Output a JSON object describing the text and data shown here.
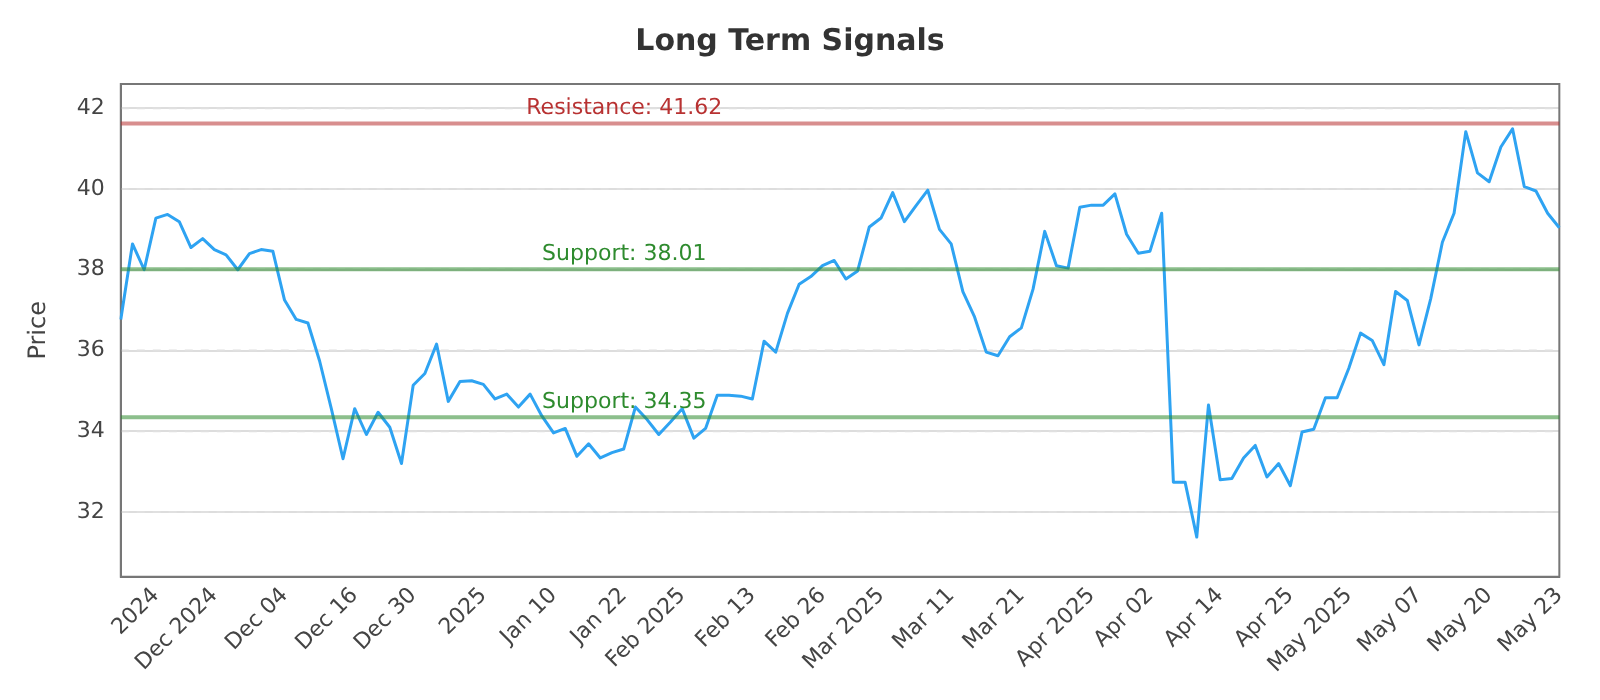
{
  "chart_data": {
    "type": "line",
    "title": "Long Term Signals",
    "ylabel": "Price",
    "categories": [
      null,
      null,
      null,
      "2024",
      null,
      null,
      null,
      null,
      "Dec 2024",
      null,
      null,
      null,
      null,
      null,
      "Dec 04",
      null,
      null,
      null,
      null,
      null,
      "Dec 16",
      null,
      null,
      null,
      null,
      "Dec 30",
      null,
      null,
      null,
      null,
      null,
      "2025",
      null,
      null,
      null,
      null,
      null,
      "Jan 10",
      null,
      null,
      null,
      null,
      null,
      "Jan 22",
      null,
      null,
      null,
      null,
      "Feb 2025",
      null,
      null,
      null,
      null,
      null,
      "Feb 13",
      null,
      null,
      null,
      null,
      null,
      "Feb 26",
      null,
      null,
      null,
      null,
      "Mar 2025",
      null,
      null,
      null,
      null,
      null,
      "Mar 11",
      null,
      null,
      null,
      null,
      null,
      "Mar 21",
      null,
      null,
      null,
      null,
      null,
      "Apr 2025",
      null,
      null,
      null,
      null,
      "Apr 02",
      null,
      null,
      null,
      null,
      null,
      "Apr 14",
      null,
      null,
      null,
      null,
      null,
      "Apr 25",
      null,
      null,
      null,
      null,
      "May 2025",
      null,
      null,
      null,
      null,
      null,
      "May 07",
      null,
      null,
      null,
      null,
      null,
      "May 20",
      null,
      null,
      null,
      null,
      null,
      "May 23"
    ],
    "series": [
      {
        "color": "#2ea3f2",
        "values": [
          36.77,
          38.64,
          38.0,
          39.28,
          39.37,
          39.19,
          38.55,
          38.77,
          38.5,
          38.37,
          38.0,
          38.4,
          38.5,
          38.46,
          37.25,
          36.77,
          36.68,
          35.74,
          34.56,
          33.32,
          34.56,
          33.92,
          34.47,
          34.1,
          33.2,
          35.14,
          35.43,
          36.16,
          34.74,
          35.23,
          35.25,
          35.16,
          34.8,
          34.92,
          34.6,
          34.92,
          34.38,
          33.96,
          34.07,
          33.38,
          33.69,
          33.34,
          33.47,
          33.56,
          34.6,
          34.29,
          33.92,
          34.23,
          34.56,
          33.83,
          34.07,
          34.89,
          34.89,
          34.87,
          34.8,
          36.23,
          35.96,
          36.92,
          37.64,
          37.83,
          38.1,
          38.23,
          37.77,
          37.97,
          39.06,
          39.28,
          39.91,
          39.19,
          39.59,
          39.97,
          39.0,
          38.64,
          37.46,
          36.83,
          35.96,
          35.87,
          36.34,
          36.56,
          37.52,
          38.95,
          38.1,
          38.04,
          39.55,
          39.6,
          39.6,
          39.88,
          38.88,
          38.41,
          38.46,
          39.4,
          32.74,
          32.74,
          31.38,
          34.65,
          32.8,
          32.83,
          33.34,
          33.65,
          32.87,
          33.2,
          32.65,
          33.98,
          34.05,
          34.83,
          34.83,
          35.56,
          36.43,
          36.25,
          35.65,
          37.46,
          37.24,
          36.14,
          37.28,
          38.68,
          39.4,
          41.42,
          40.4,
          40.18,
          41.04,
          41.49,
          40.06,
          39.95,
          39.4,
          39.04
        ]
      }
    ],
    "ylim": [
      30.4,
      42.6
    ],
    "yticks": [
      32,
      34,
      36,
      38,
      40,
      42
    ],
    "grid": "y",
    "legend": false,
    "marker": "none",
    "line_style": "solid",
    "ref_lines": [
      {
        "axis": "y",
        "value": 41.62,
        "label": "Resistance: 41.62",
        "color": "#b83232"
      },
      {
        "axis": "y",
        "value": 38.01,
        "label": "Support: 38.01",
        "color": "#2e8b2e"
      },
      {
        "axis": "y",
        "value": 34.35,
        "label": "Support: 34.35",
        "color": "#2e8b2e"
      }
    ]
  }
}
